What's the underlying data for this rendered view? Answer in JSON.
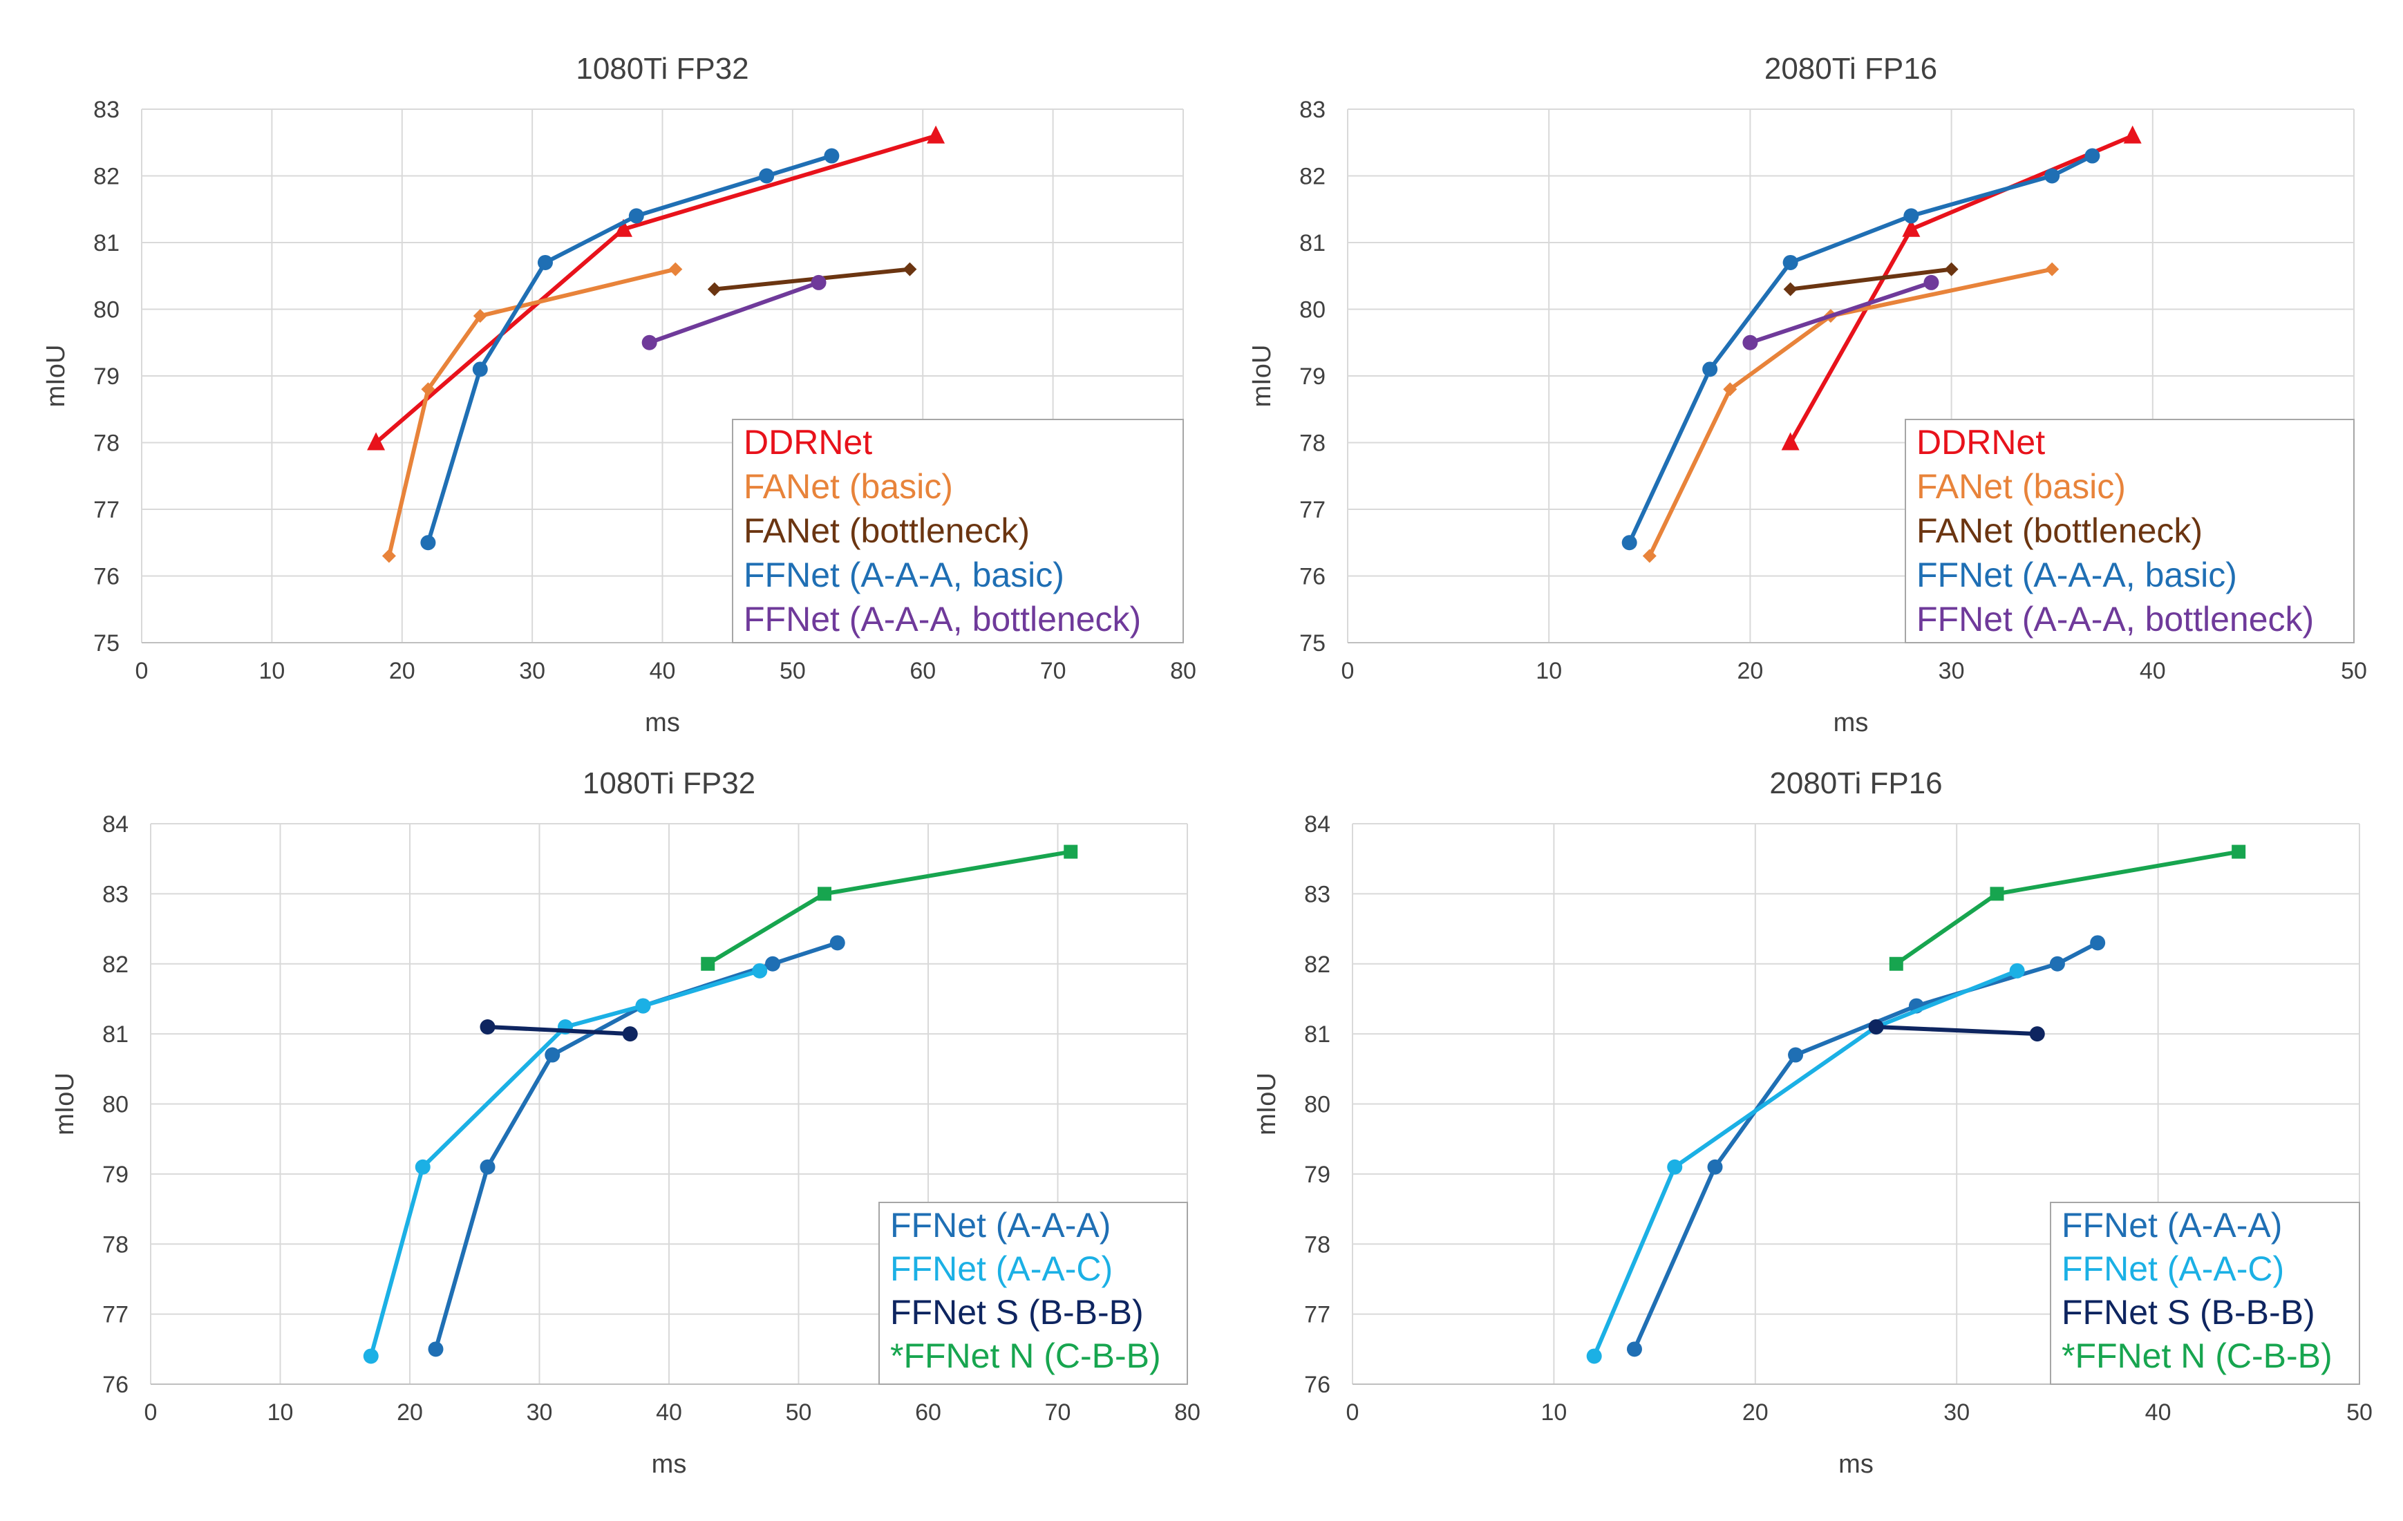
{
  "chart_data": [
    {
      "type": "line",
      "title": "1080Ti FP32",
      "xlabel": "ms",
      "ylabel": "mIoU",
      "xlim": [
        0,
        80
      ],
      "ylim": [
        75,
        83
      ],
      "xticks": [
        "0",
        "10",
        "20",
        "30",
        "40",
        "50",
        "60",
        "70",
        "80"
      ],
      "yticks": [
        "75",
        "76",
        "77",
        "78",
        "79",
        "80",
        "81",
        "82",
        "83"
      ],
      "grid": true,
      "legend_position": "bottom-right",
      "series": [
        {
          "name": "DDRNet",
          "color": "#e8121b",
          "marker": "triangle",
          "x": [
            18,
            37,
            61
          ],
          "y": [
            78.0,
            81.2,
            82.6
          ]
        },
        {
          "name": "FANet (basic)",
          "color": "#e8833a",
          "marker": "diamond",
          "x": [
            19,
            22,
            26,
            41
          ],
          "y": [
            76.3,
            78.8,
            79.9,
            80.6
          ]
        },
        {
          "name": "FANet (bottleneck)",
          "color": "#6b3511",
          "marker": "diamond",
          "x": [
            44,
            59
          ],
          "y": [
            80.3,
            80.6
          ]
        },
        {
          "name": "FFNet (A-A-A, basic)",
          "color": "#1f6fb4",
          "marker": "circle",
          "x": [
            22,
            26,
            31,
            38,
            48,
            53
          ],
          "y": [
            76.5,
            79.1,
            80.7,
            81.4,
            82.0,
            82.3
          ]
        },
        {
          "name": "FFNet (A-A-A, bottleneck)",
          "color": "#6f3a9a",
          "marker": "circle",
          "x": [
            39,
            52
          ],
          "y": [
            79.5,
            80.4
          ]
        }
      ]
    },
    {
      "type": "line",
      "title": "2080Ti FP16",
      "xlabel": "ms",
      "ylabel": "mIoU",
      "xlim": [
        0,
        50
      ],
      "ylim": [
        75,
        83
      ],
      "xticks": [
        "0",
        "10",
        "20",
        "30",
        "40",
        "50"
      ],
      "yticks": [
        "75",
        "76",
        "77",
        "78",
        "79",
        "80",
        "81",
        "82",
        "83"
      ],
      "grid": true,
      "legend_position": "bottom-right",
      "series": [
        {
          "name": "DDRNet",
          "color": "#e8121b",
          "marker": "triangle",
          "x": [
            22,
            28,
            39
          ],
          "y": [
            78.0,
            81.2,
            82.6
          ]
        },
        {
          "name": "FANet (basic)",
          "color": "#e8833a",
          "marker": "diamond",
          "x": [
            15,
            19,
            24,
            35
          ],
          "y": [
            76.3,
            78.8,
            79.9,
            80.6
          ]
        },
        {
          "name": "FANet (bottleneck)",
          "color": "#6b3511",
          "marker": "diamond",
          "x": [
            22,
            30
          ],
          "y": [
            80.3,
            80.6
          ]
        },
        {
          "name": "FFNet (A-A-A, basic)",
          "color": "#1f6fb4",
          "marker": "circle",
          "x": [
            14,
            18,
            22,
            28,
            35,
            37
          ],
          "y": [
            76.5,
            79.1,
            80.7,
            81.4,
            82.0,
            82.3
          ]
        },
        {
          "name": "FFNet (A-A-A, bottleneck)",
          "color": "#6f3a9a",
          "marker": "circle",
          "x": [
            20,
            29
          ],
          "y": [
            79.5,
            80.4
          ]
        }
      ]
    },
    {
      "type": "line",
      "title": "1080Ti FP32",
      "xlabel": "ms",
      "ylabel": "mIoU",
      "xlim": [
        0,
        80
      ],
      "ylim": [
        76,
        84
      ],
      "xticks": [
        "0",
        "10",
        "20",
        "30",
        "40",
        "50",
        "60",
        "70",
        "80"
      ],
      "yticks": [
        "76",
        "77",
        "78",
        "79",
        "80",
        "81",
        "82",
        "83",
        "84"
      ],
      "grid": true,
      "legend_position": "bottom-right",
      "series": [
        {
          "name": "FFNet (A-A-A)",
          "color": "#1f6fb4",
          "marker": "circle",
          "x": [
            22,
            26,
            31,
            38,
            48,
            53
          ],
          "y": [
            76.5,
            79.1,
            80.7,
            81.4,
            82.0,
            82.3
          ]
        },
        {
          "name": "FFNet (A-A-C)",
          "color": "#1bb0e5",
          "marker": "circle",
          "x": [
            17,
            21,
            32,
            38,
            47
          ],
          "y": [
            76.4,
            79.1,
            81.1,
            81.4,
            81.9
          ]
        },
        {
          "name": "FFNet S (B-B-B)",
          "color": "#0e2560",
          "marker": "circle",
          "x": [
            26,
            37
          ],
          "y": [
            81.1,
            81.0
          ]
        },
        {
          "name": "*FFNet N (C-B-B)",
          "color": "#17a54f",
          "marker": "square",
          "x": [
            43,
            52,
            71
          ],
          "y": [
            82.0,
            83.0,
            83.6
          ]
        }
      ]
    },
    {
      "type": "line",
      "title": "2080Ti FP16",
      "xlabel": "ms",
      "ylabel": "mIoU",
      "xlim": [
        0,
        50
      ],
      "ylim": [
        76,
        84
      ],
      "xticks": [
        "0",
        "10",
        "20",
        "30",
        "40",
        "50"
      ],
      "yticks": [
        "76",
        "77",
        "78",
        "79",
        "80",
        "81",
        "82",
        "83",
        "84"
      ],
      "grid": true,
      "legend_position": "bottom-right",
      "series": [
        {
          "name": "FFNet (A-A-A)",
          "color": "#1f6fb4",
          "marker": "circle",
          "x": [
            14,
            18,
            22,
            28,
            35,
            37
          ],
          "y": [
            76.5,
            79.1,
            80.7,
            81.4,
            82.0,
            82.3
          ]
        },
        {
          "name": "FFNet (A-A-C)",
          "color": "#1bb0e5",
          "marker": "circle",
          "x": [
            12,
            16,
            26,
            33
          ],
          "y": [
            76.4,
            79.1,
            81.1,
            81.9
          ]
        },
        {
          "name": "FFNet S (B-B-B)",
          "color": "#0e2560",
          "marker": "circle",
          "x": [
            26,
            34
          ],
          "y": [
            81.1,
            81.0
          ]
        },
        {
          "name": "*FFNet N (C-B-B)",
          "color": "#17a54f",
          "marker": "square",
          "x": [
            27,
            32,
            44
          ],
          "y": [
            82.0,
            83.0,
            83.6
          ]
        }
      ]
    }
  ]
}
